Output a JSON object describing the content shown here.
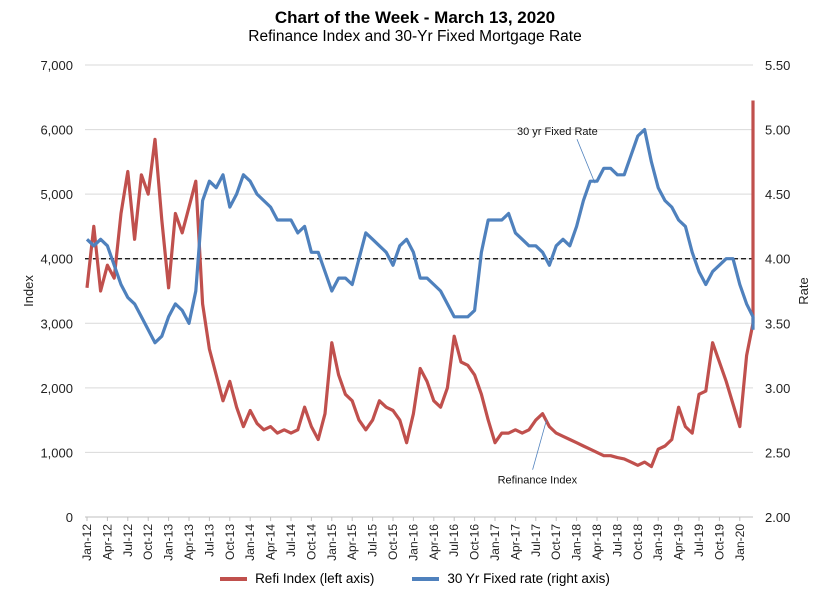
{
  "title": "Chart of the Week - March 13, 2020",
  "subtitle": "Refinance Index and 30-Yr Fixed Mortgage Rate",
  "colors": {
    "refi": "#c0504d",
    "rate": "#4f81bd",
    "reference_line": "#000000",
    "grid": "#d9d9d9"
  },
  "legend": [
    {
      "label": "Refi Index (left axis)",
      "color": "#c0504d"
    },
    {
      "label": "30 Yr Fixed rate (right axis)",
      "color": "#4f81bd"
    }
  ],
  "chart_data": {
    "type": "line",
    "title": "Chart of the Week - March 13, 2020",
    "subtitle": "Refinance Index and 30-Yr Fixed Mortgage Rate",
    "ylabel": "Index",
    "y2label": "Rate",
    "ylim": [
      0,
      7000
    ],
    "y2lim": [
      2.0,
      5.5
    ],
    "yticks": [
      "0",
      "1,000",
      "2,000",
      "3,000",
      "4,000",
      "5,000",
      "6,000",
      "7,000"
    ],
    "y2ticks": [
      "2.00",
      "2.50",
      "3.00",
      "3.50",
      "4.00",
      "4.50",
      "5.00",
      "5.50"
    ],
    "xticks": [
      "Jan-12",
      "Apr-12",
      "Jul-12",
      "Oct-12",
      "Jan-13",
      "Apr-13",
      "Jul-13",
      "Oct-13",
      "Jan-14",
      "Apr-14",
      "Jul-14",
      "Oct-14",
      "Jan-15",
      "Apr-15",
      "Jul-15",
      "Oct-15",
      "Jan-16",
      "Apr-16",
      "Jul-16",
      "Oct-16",
      "Jan-17",
      "Apr-17",
      "Jul-17",
      "Oct-17",
      "Jan-18",
      "Apr-18",
      "Jul-18",
      "Oct-18",
      "Jan-19",
      "Apr-19",
      "Jul-19",
      "Oct-19",
      "Jan-20"
    ],
    "grid": true,
    "legend_position": "bottom",
    "reference_line": {
      "axis": "right",
      "value": 4.0,
      "style": "dashed"
    },
    "x_unit": "months since Jan-12",
    "series": [
      {
        "name": "Refi Index (left axis)",
        "axis": "left",
        "x": [
          0,
          1,
          2,
          3,
          4,
          5,
          6,
          7,
          8,
          9,
          10,
          11,
          12,
          13,
          14,
          15,
          16,
          17,
          18,
          19,
          20,
          21,
          22,
          23,
          24,
          25,
          26,
          27,
          28,
          29,
          30,
          31,
          32,
          33,
          34,
          35,
          36,
          37,
          38,
          39,
          40,
          41,
          42,
          43,
          44,
          45,
          46,
          47,
          48,
          49,
          50,
          51,
          52,
          53,
          54,
          55,
          56,
          57,
          58,
          59,
          60,
          61,
          62,
          63,
          64,
          65,
          66,
          67,
          68,
          69,
          70,
          71,
          72,
          73,
          74,
          75,
          76,
          77,
          78,
          79,
          80,
          81,
          82,
          83,
          84,
          85,
          86,
          87,
          88,
          89,
          90,
          91,
          92,
          93,
          94,
          95,
          96,
          97,
          98,
          98.4
        ],
        "values": [
          3550,
          4500,
          3500,
          3900,
          3700,
          4700,
          5350,
          4300,
          5300,
          5000,
          5850,
          4600,
          3550,
          4700,
          4400,
          4800,
          5200,
          3300,
          2600,
          2200,
          1800,
          2100,
          1700,
          1400,
          1650,
          1450,
          1350,
          1400,
          1300,
          1350,
          1300,
          1350,
          1700,
          1400,
          1200,
          1600,
          2700,
          2200,
          1900,
          1800,
          1500,
          1350,
          1500,
          1800,
          1700,
          1650,
          1500,
          1150,
          1600,
          2300,
          2100,
          1800,
          1700,
          2000,
          2800,
          2400,
          2350,
          2200,
          1900,
          1500,
          1150,
          1300,
          1300,
          1350,
          1300,
          1350,
          1500,
          1600,
          1400,
          1300,
          1250,
          1200,
          1150,
          1100,
          1050,
          1000,
          950,
          950,
          920,
          900,
          850,
          800,
          850,
          780,
          1050,
          1100,
          1200,
          1700,
          1400,
          1300,
          1900,
          1950,
          2700,
          2400,
          2100,
          1750,
          1400,
          2500,
          3000,
          6450
        ]
      },
      {
        "name": "30 Yr Fixed rate (right axis)",
        "axis": "right",
        "x": [
          0,
          1,
          2,
          3,
          4,
          5,
          6,
          7,
          8,
          9,
          10,
          11,
          12,
          13,
          14,
          15,
          16,
          17,
          18,
          19,
          20,
          21,
          22,
          23,
          24,
          25,
          26,
          27,
          28,
          29,
          30,
          31,
          32,
          33,
          34,
          35,
          36,
          37,
          38,
          39,
          40,
          41,
          42,
          43,
          44,
          45,
          46,
          47,
          48,
          49,
          50,
          51,
          52,
          53,
          54,
          55,
          56,
          57,
          58,
          59,
          60,
          61,
          62,
          63,
          64,
          65,
          66,
          67,
          68,
          69,
          70,
          71,
          72,
          73,
          74,
          75,
          76,
          77,
          78,
          79,
          80,
          81,
          82,
          83,
          84,
          85,
          86,
          87,
          88,
          89,
          90,
          91,
          92,
          93,
          94,
          95,
          96,
          97,
          98,
          98.4
        ],
        "values": [
          4.15,
          4.1,
          4.15,
          4.1,
          3.95,
          3.8,
          3.7,
          3.65,
          3.55,
          3.45,
          3.35,
          3.4,
          3.55,
          3.65,
          3.6,
          3.5,
          3.75,
          4.45,
          4.6,
          4.55,
          4.65,
          4.4,
          4.5,
          4.65,
          4.6,
          4.5,
          4.45,
          4.4,
          4.3,
          4.3,
          4.3,
          4.2,
          4.25,
          4.05,
          4.05,
          3.9,
          3.75,
          3.85,
          3.85,
          3.8,
          4.0,
          4.2,
          4.15,
          4.1,
          4.05,
          3.95,
          4.1,
          4.15,
          4.05,
          3.85,
          3.85,
          3.8,
          3.75,
          3.65,
          3.55,
          3.55,
          3.55,
          3.6,
          4.05,
          4.3,
          4.3,
          4.3,
          4.35,
          4.2,
          4.15,
          4.1,
          4.1,
          4.05,
          3.95,
          4.1,
          4.15,
          4.1,
          4.25,
          4.45,
          4.6,
          4.6,
          4.7,
          4.7,
          4.65,
          4.65,
          4.8,
          4.95,
          5.0,
          4.75,
          4.55,
          4.45,
          4.4,
          4.3,
          4.25,
          4.05,
          3.9,
          3.8,
          3.9,
          3.95,
          4.0,
          4.0,
          3.8,
          3.65,
          3.55,
          3.45
        ]
      }
    ],
    "annotations": [
      {
        "text": "30 yr Fixed Rate",
        "series": "30 Yr Fixed rate (right axis)",
        "at_x": 75
      },
      {
        "text": "Refinance Index",
        "series": "Refi Index (left axis)",
        "at_x": 67
      }
    ]
  }
}
